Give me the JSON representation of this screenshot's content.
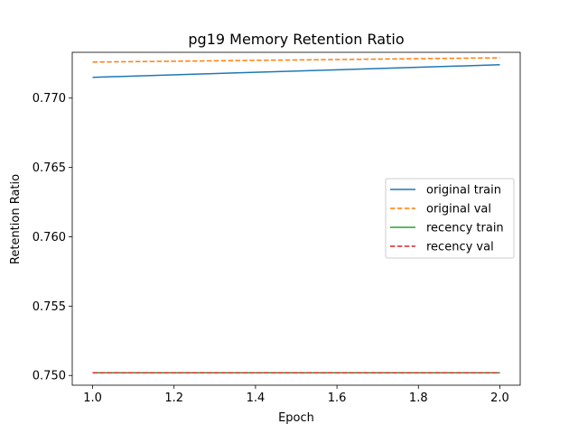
{
  "chart_data": {
    "type": "line",
    "title": "pg19 Memory Retention Ratio",
    "xlabel": "Epoch",
    "ylabel": "Retention Ratio",
    "xlim": [
      0.95,
      2.05
    ],
    "ylim": [
      0.7493,
      0.7733
    ],
    "xticks": [
      1.0,
      1.2,
      1.4,
      1.6,
      1.8,
      2.0
    ],
    "xtick_labels": [
      "1.0",
      "1.2",
      "1.4",
      "1.6",
      "1.8",
      "2.0"
    ],
    "yticks": [
      0.75,
      0.755,
      0.76,
      0.765,
      0.77
    ],
    "ytick_labels": [
      "0.750",
      "0.755",
      "0.760",
      "0.765",
      "0.770"
    ],
    "grid": false,
    "legend_position": "center-right",
    "x": [
      1.0,
      2.0
    ],
    "series": [
      {
        "name": "original train",
        "values": [
          0.7715,
          0.7724
        ],
        "color": "#1f77b4",
        "dash": "solid"
      },
      {
        "name": "original val",
        "values": [
          0.7726,
          0.7729
        ],
        "color": "#ff7f0e",
        "dash": "dashed"
      },
      {
        "name": "recency train",
        "values": [
          0.7502,
          0.7502
        ],
        "color": "#2ca02c",
        "dash": "solid"
      },
      {
        "name": "recency val",
        "values": [
          0.7502,
          0.7502
        ],
        "color": "#d62728",
        "dash": "dashed"
      }
    ]
  }
}
